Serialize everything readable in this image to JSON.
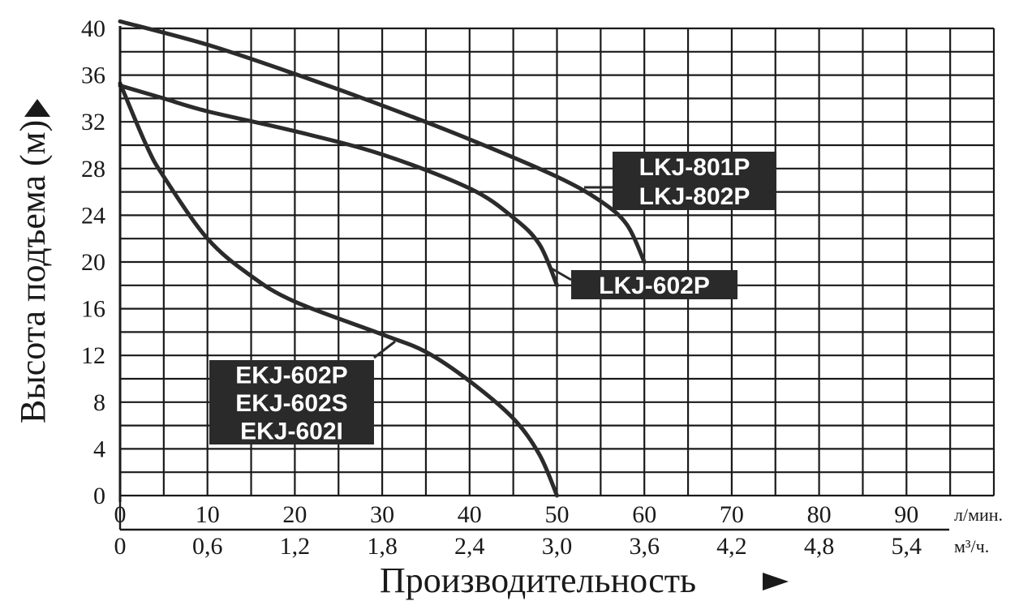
{
  "chart_data": {
    "type": "line",
    "title": "",
    "ylabel": "Высота подъема (м)",
    "xlabel": "Производительность",
    "ylim": [
      0,
      40
    ],
    "xlim": [
      0,
      100
    ],
    "y_ticks": [
      "0",
      "4",
      "8",
      "12",
      "16",
      "20",
      "24",
      "28",
      "32",
      "36",
      "40"
    ],
    "x_ticks_primary": [
      "0",
      "10",
      "20",
      "30",
      "40",
      "50",
      "60",
      "70",
      "80",
      "90"
    ],
    "x_unit_primary": "л/мин.",
    "x_ticks_secondary": [
      "0",
      "0,6",
      "1,2",
      "1,8",
      "2,4",
      "3,0",
      "3,6",
      "4,2",
      "4,8",
      "5,4"
    ],
    "x_unit_secondary": "м³/ч.",
    "grid": true,
    "series": [
      {
        "name": "LKJ-801P / LKJ-802P",
        "points": [
          [
            0,
            40.6
          ],
          [
            10,
            38.6
          ],
          [
            20,
            36.1
          ],
          [
            30,
            33.4
          ],
          [
            40,
            30.5
          ],
          [
            50,
            27.3
          ],
          [
            55,
            25.2
          ],
          [
            58,
            23.2
          ],
          [
            60,
            20.0
          ]
        ]
      },
      {
        "name": "LKJ-602P",
        "points": [
          [
            0,
            35.1
          ],
          [
            5,
            34.0
          ],
          [
            10,
            32.9
          ],
          [
            20,
            31.2
          ],
          [
            30,
            29.2
          ],
          [
            40,
            26.3
          ],
          [
            45,
            23.8
          ],
          [
            48,
            21.5
          ],
          [
            50,
            18.0
          ]
        ]
      },
      {
        "name": "EKJ-602P / EKJ-602S / EKJ-602I",
        "points": [
          [
            0,
            35.3
          ],
          [
            3,
            30.0
          ],
          [
            5,
            27.3
          ],
          [
            10,
            22.0
          ],
          [
            15,
            18.8
          ],
          [
            20,
            16.6
          ],
          [
            30,
            13.8
          ],
          [
            35,
            12.3
          ],
          [
            40,
            9.8
          ],
          [
            45,
            6.6
          ],
          [
            48,
            3.5
          ],
          [
            50,
            0.0
          ]
        ]
      }
    ],
    "annotations": [
      {
        "lines": [
          "LKJ-801P",
          "LKJ-802P"
        ],
        "series": 0
      },
      {
        "lines": [
          "LKJ-602P"
        ],
        "series": 1
      },
      {
        "lines": [
          "EKJ-602P",
          "EKJ-602S",
          "EKJ-602I"
        ],
        "series": 2
      }
    ]
  }
}
